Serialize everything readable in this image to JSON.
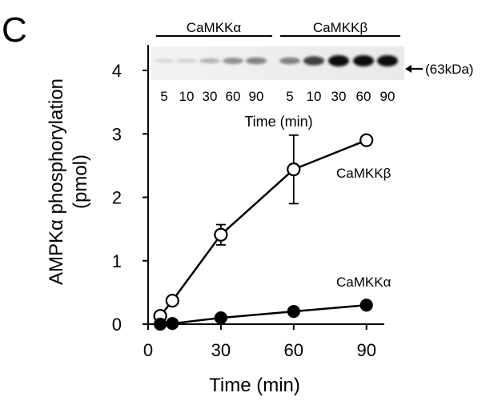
{
  "panel_label": "C",
  "chart_data": {
    "type": "line",
    "xlabel": "Time (min)",
    "ylabel_line1": "AMPKα phosphorylation",
    "ylabel_line2": "(pmol)",
    "xlim": [
      0,
      100
    ],
    "ylim": [
      0,
      4.4
    ],
    "xticks": [
      0,
      30,
      60,
      90
    ],
    "yticks": [
      0,
      1,
      2,
      3,
      4
    ],
    "grid": false,
    "series": [
      {
        "name": "CaMKKβ",
        "marker": "open-circle",
        "x": [
          5,
          10,
          30,
          60,
          90
        ],
        "values": [
          0.13,
          0.37,
          1.41,
          2.44,
          2.9
        ],
        "errors": [
          0,
          0,
          0.16,
          0.54,
          0
        ]
      },
      {
        "name": "CaMKKα",
        "marker": "filled-circle",
        "x": [
          5,
          10,
          30,
          60,
          90
        ],
        "values": [
          0.0,
          0.01,
          0.1,
          0.2,
          0.3
        ],
        "errors": [
          0,
          0,
          0,
          0,
          0
        ]
      }
    ]
  },
  "blot_inset": {
    "groups": [
      {
        "label": "CaMKKα",
        "lanes": [
          "5",
          "10",
          "30",
          "60",
          "90"
        ],
        "intensities": [
          0.05,
          0.08,
          0.22,
          0.38,
          0.45
        ]
      },
      {
        "label": "CaMKKβ",
        "lanes": [
          "5",
          "10",
          "30",
          "60",
          "90"
        ],
        "intensities": [
          0.45,
          0.75,
          1.0,
          1.0,
          1.0
        ]
      }
    ],
    "band_marker": "(63kDa)",
    "xlabel": "Time (min)"
  }
}
